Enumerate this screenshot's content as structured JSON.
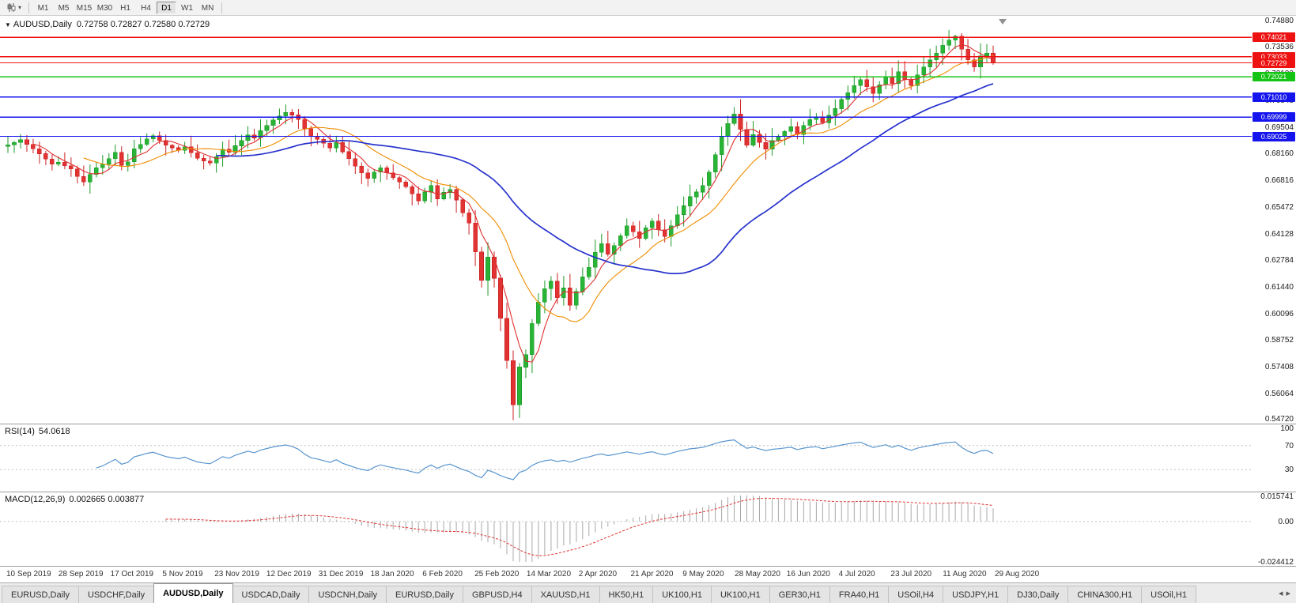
{
  "colors": {
    "up_stroke": "#1d9b28",
    "up_fill": "#2ab437",
    "down_stroke": "#cc2222",
    "down_fill": "#e23333",
    "ma_fast": "#e03131",
    "ma_mid": "#f08c00",
    "ma_slow": "#2733cc",
    "rsi_line": "#5a96cf",
    "macd_hist": "#a8a8a8",
    "macd_signal": "#e03131"
  },
  "toolbar": {
    "timeframes": [
      "M1",
      "M5",
      "M15",
      "M30",
      "H1",
      "H4",
      "D1",
      "W1",
      "MN"
    ],
    "active": "D1"
  },
  "main_chart": {
    "title_symbol": "AUDUSD,Daily",
    "title_ohlc": "0.72758 0.72827 0.72580 0.72729",
    "axis_labels": [
      "0.74880",
      "0.73536",
      "0.72192",
      "0.70848",
      "0.69504",
      "0.68160",
      "0.66816",
      "0.65472",
      "0.64128",
      "0.62784",
      "0.61440",
      "0.60096",
      "0.58752",
      "0.57408",
      "0.56064",
      "0.54720"
    ],
    "lines": [
      {
        "price": 0.74021,
        "label": "0.74021",
        "color": "#ee1111"
      },
      {
        "price": 0.73033,
        "label": "0.73033",
        "color": "#ee1111"
      },
      {
        "price": 0.72729,
        "label": "0.72729",
        "color": "#ee1111",
        "type": "bid",
        "width": 1
      },
      {
        "price": 0.72021,
        "label": "0.72021",
        "color": "#14c414"
      },
      {
        "price": 0.7101,
        "label": "0.71010",
        "color": "#1414ee"
      },
      {
        "price": 0.69999,
        "label": "0.69999",
        "color": "#1414ee"
      },
      {
        "price": 0.69025,
        "label": "0.69025",
        "color": "#1414ee"
      }
    ]
  },
  "rsi": {
    "name": "RSI(14)",
    "value": "54.0618",
    "axis_labels": [
      "100",
      "70",
      "30"
    ],
    "levels": [
      70,
      30
    ]
  },
  "macd": {
    "name": "MACD(12,26,9)",
    "value": "0.002665 0.003877",
    "axis_labels": [
      "0.015741",
      "0.00",
      "-0.024412"
    ]
  },
  "tabs": {
    "items": [
      "EURUSD,Daily",
      "USDCHF,Daily",
      "AUDUSD,Daily",
      "USDCAD,Daily",
      "USDCNH,Daily",
      "EURUSD,Daily",
      "GBPUSD,H4",
      "XAUUSD,H1",
      "HK50,H1",
      "UK100,H1",
      "UK100,H1",
      "GER30,H1",
      "FRA40,H1",
      "USOil,H4",
      "USDJPY,H1",
      "DJ30,Daily",
      "CHINA300,H1",
      "USOil,H1"
    ],
    "active_index": 2,
    "scroll_left": "◂",
    "scroll_right": "▸"
  },
  "chart_data": {
    "type": "candlestick",
    "symbol": "AUDUSD",
    "timeframe": "Daily",
    "title": "AUDUSD,Daily",
    "ohlc_last": {
      "open": 0.72758,
      "high": 0.72827,
      "low": 0.7258,
      "close": 0.72729
    },
    "y_range": [
      0.5472,
      0.7488
    ],
    "y_tick_step": 0.01344,
    "x_tick_labels": [
      "10 Sep 2019",
      "28 Sep 2019",
      "17 Oct 2019",
      "5 Nov 2019",
      "23 Nov 2019",
      "12 Dec 2019",
      "31 Dec 2019",
      "18 Jan 2020",
      "6 Feb 2020",
      "25 Feb 2020",
      "14 Mar 2020",
      "2 Apr 2020",
      "21 Apr 2020",
      "9 May 2020",
      "28 May 2020",
      "16 Jun 2020",
      "4 Jul 2020",
      "23 Jul 2020",
      "11 Aug 2020",
      "29 Aug 2020"
    ],
    "horizontal_levels": [
      0.74021,
      0.73033,
      0.72729,
      0.72021,
      0.7101,
      0.69999,
      0.69025
    ],
    "closes": [
      0.686,
      0.6872,
      0.6885,
      0.6862,
      0.684,
      0.6815,
      0.6788,
      0.6762,
      0.6773,
      0.6755,
      0.6738,
      0.67,
      0.6672,
      0.671,
      0.6745,
      0.6762,
      0.679,
      0.6822,
      0.6756,
      0.6775,
      0.684,
      0.6862,
      0.689,
      0.6905,
      0.6882,
      0.6858,
      0.6845,
      0.6832,
      0.685,
      0.682,
      0.6792,
      0.6778,
      0.6768,
      0.68,
      0.6838,
      0.6822,
      0.6855,
      0.6882,
      0.691,
      0.6895,
      0.6932,
      0.6958,
      0.6985,
      0.7005,
      0.7022,
      0.701,
      0.6988,
      0.6942,
      0.6902,
      0.6888,
      0.6868,
      0.6845,
      0.6872,
      0.6825,
      0.679,
      0.6752,
      0.6718,
      0.669,
      0.6722,
      0.6745,
      0.6718,
      0.6695,
      0.6672,
      0.6648,
      0.6612,
      0.6578,
      0.6622,
      0.6655,
      0.6588,
      0.662,
      0.6635,
      0.6582,
      0.6518,
      0.6465,
      0.632,
      0.6178,
      0.6295,
      0.6188,
      0.5985,
      0.5772,
      0.555,
      0.574,
      0.5802,
      0.596,
      0.6068,
      0.6135,
      0.6172,
      0.609,
      0.6138,
      0.6052,
      0.612,
      0.6195,
      0.6242,
      0.6318,
      0.6362,
      0.6308,
      0.6352,
      0.6402,
      0.6452,
      0.6422,
      0.6388,
      0.6442,
      0.6475,
      0.6432,
      0.6398,
      0.6452,
      0.6508,
      0.6552,
      0.6598,
      0.6622,
      0.6655,
      0.6722,
      0.681,
      0.6902,
      0.6968,
      0.7015,
      0.6938,
      0.6858,
      0.6912,
      0.6872,
      0.6838,
      0.6882,
      0.6902,
      0.6928,
      0.6952,
      0.6912,
      0.6958,
      0.6988,
      0.7002,
      0.6972,
      0.7008,
      0.7042,
      0.7088,
      0.7122,
      0.7158,
      0.7188,
      0.7152,
      0.7118,
      0.7162,
      0.7202,
      0.7168,
      0.7228,
      0.7188,
      0.7158,
      0.7212,
      0.7252,
      0.7288,
      0.7322,
      0.7362,
      0.7388,
      0.7408,
      0.7342,
      0.7288,
      0.7252,
      0.7308,
      0.7322,
      0.72729
    ],
    "indicators": {
      "rsi": {
        "period": 14,
        "last": 54.0618,
        "levels": [
          70,
          30
        ],
        "range": [
          0,
          100
        ]
      },
      "macd": {
        "fast": 12,
        "slow": 26,
        "signal": 9,
        "last_macd": 0.002665,
        "last_signal": 0.003877,
        "axis_range": [
          -0.024412,
          0.015741
        ]
      }
    }
  }
}
